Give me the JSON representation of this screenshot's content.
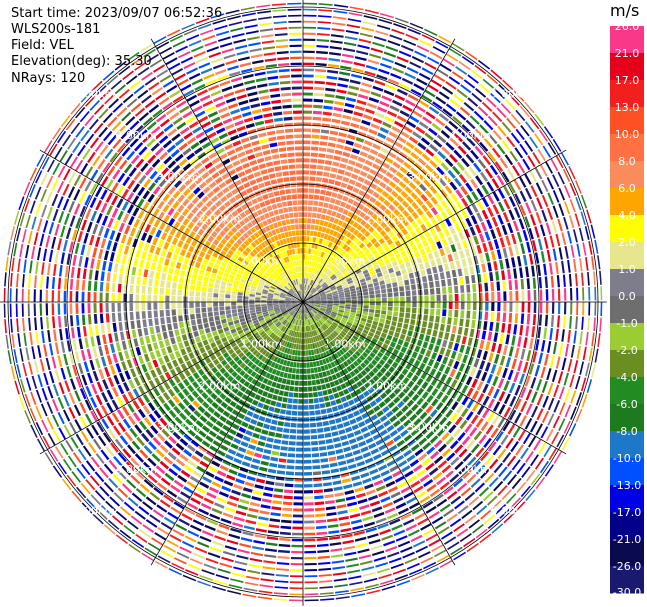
{
  "header": {
    "start_time": "Start time: 2023/09/07 06:52:36",
    "instrument": "WLS200s-181",
    "field": "Field: VEL",
    "elevation": "Elevation(deg): 35.30",
    "nrays": "NRays: 120"
  },
  "colorbar": {
    "unit": "m/s",
    "bins": [
      {
        "lo": 21.0,
        "hi": 26.0,
        "color": "#f9388a",
        "label": "26.0"
      },
      {
        "lo": 17.0,
        "hi": 21.0,
        "color": "#e7001b",
        "label": "21.0"
      },
      {
        "lo": 13.0,
        "hi": 17.0,
        "color": "#f21f1f",
        "label": "17.0"
      },
      {
        "lo": 10.0,
        "hi": 13.0,
        "color": "#fe5022",
        "label": "13.0"
      },
      {
        "lo": 8.0,
        "hi": 10.0,
        "color": "#ff7043",
        "label": "10.0"
      },
      {
        "lo": 6.0,
        "hi": 8.0,
        "color": "#fa8c5c",
        "label": "8.0"
      },
      {
        "lo": 4.0,
        "hi": 6.0,
        "color": "#ffa500",
        "label": "6.0"
      },
      {
        "lo": 2.0,
        "hi": 4.0,
        "color": "#ffff00",
        "label": "4.0"
      },
      {
        "lo": 1.0,
        "hi": 2.0,
        "color": "#e6e68c",
        "label": "2.0"
      },
      {
        "lo": 0.0,
        "hi": 1.0,
        "color": "#7d7d8c",
        "label": "1.0"
      },
      {
        "lo": -1.0,
        "hi": 0.0,
        "color": "#6e6e6e",
        "label": "0.0"
      },
      {
        "lo": -2.0,
        "hi": -1.0,
        "color": "#9acd32",
        "label": "-1.0"
      },
      {
        "lo": -4.0,
        "hi": -2.0,
        "color": "#6b8e23",
        "label": "-2.0"
      },
      {
        "lo": -6.0,
        "hi": -4.0,
        "color": "#228b22",
        "label": "-4.0"
      },
      {
        "lo": -8.0,
        "hi": -6.0,
        "color": "#1e7a1e",
        "label": "-6.0"
      },
      {
        "lo": -10.0,
        "hi": -8.0,
        "color": "#1e78c8",
        "label": "-8.0"
      },
      {
        "lo": -13.0,
        "hi": -10.0,
        "color": "#0050ff",
        "label": "-10.0"
      },
      {
        "lo": -17.0,
        "hi": -13.0,
        "color": "#0000e6",
        "label": "-13.0"
      },
      {
        "lo": -21.0,
        "hi": -17.0,
        "color": "#00008b",
        "label": "-17.0"
      },
      {
        "lo": -26.0,
        "hi": -21.0,
        "color": "#0a0a50",
        "label": "-21.0"
      },
      {
        "lo": -30.0,
        "hi": -26.0,
        "color": "#191970",
        "label": "-26.0"
      }
    ],
    "bottom_label": "-30.0"
  },
  "chart_data": {
    "type": "heatmap",
    "projection": "polar PPI",
    "field": "VEL",
    "unit": "m/s",
    "elevation_deg": 35.3,
    "nrays": 120,
    "value_range": [
      -30.0,
      26.0
    ],
    "range_rings_km": [
      1.0,
      2.0,
      3.0,
      4.0,
      5.0
    ],
    "ring_labels": [
      "1.00km",
      "2.00km",
      "3.00km",
      "4.00km",
      "5.00km"
    ],
    "max_range_km": 5.15,
    "spoke_bearings_deg": [
      0,
      30,
      60,
      90,
      120,
      150,
      180,
      210,
      240,
      270,
      300,
      330
    ],
    "gates_per_ray": 50,
    "noise_beyond_km": [
      3.0,
      3.35
    ],
    "velocity_pattern": {
      "north_peak_mps": 8.5,
      "south_peak_mps": -9.0,
      "east_offset_mps": -1.2,
      "peak_range_km": 1.9
    }
  }
}
